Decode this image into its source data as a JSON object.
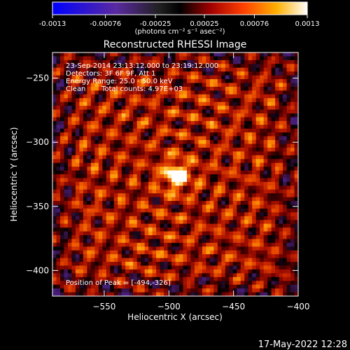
{
  "chart_data": {
    "type": "heatmap",
    "title": "Reconstructed RHESSI Image",
    "xlabel": "Heliocentric X (arcsec)",
    "ylabel": "Heliocentric Y (arcsec)",
    "xlim": [
      -590,
      -400
    ],
    "ylim": [
      -420,
      -230
    ],
    "x_ticks": [
      -550,
      -500,
      -450,
      -400
    ],
    "y_ticks": [
      -250,
      -300,
      -350,
      -400
    ],
    "colorbar": {
      "range": [
        -0.0013,
        0.0013
      ],
      "ticks": [
        "-0.0013",
        "-0.00076",
        "-0.00025",
        "0.00025",
        "0.00076",
        "0.0013"
      ],
      "unit_label": "(photons cm⁻² s⁻¹ asec⁻²)"
    },
    "peak": {
      "x": -494,
      "y": -326
    },
    "annotations": {
      "time": "23-Sep-2014 23:13:12.000 to 23:19:12.000",
      "detectors": "Detectors: 3F 6F 9F, Att 1",
      "energy": "Energy Range: 25.0 - 50.0 keV",
      "clean": "Clean",
      "counts": "Total counts: 4.97E+03",
      "peak_text": "Position of Peak = [-494,-326]"
    }
  },
  "footer": {
    "date": "17-May-2022 12:28"
  }
}
